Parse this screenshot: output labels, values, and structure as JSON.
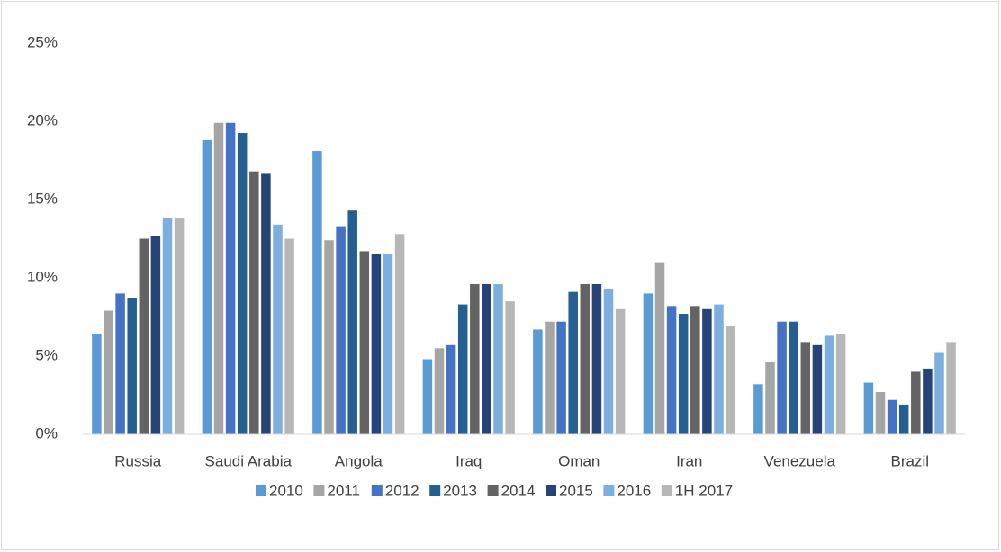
{
  "chart_data": {
    "type": "bar",
    "categories": [
      "Russia",
      "Saudi Arabia",
      "Angola",
      "Iraq",
      "Oman",
      "Iran",
      "Venezuela",
      "Brazil"
    ],
    "series": [
      {
        "name": "2010",
        "color": "#5b9bd5",
        "values": [
          6.4,
          18.8,
          18.1,
          4.8,
          6.7,
          9.0,
          3.2,
          3.3
        ]
      },
      {
        "name": "2011",
        "color": "#a5a5a5",
        "values": [
          7.9,
          19.9,
          12.4,
          5.5,
          7.2,
          11.0,
          4.6,
          2.7
        ]
      },
      {
        "name": "2012",
        "color": "#4472c4",
        "values": [
          9.0,
          19.9,
          13.3,
          5.7,
          7.2,
          8.2,
          7.2,
          2.2
        ]
      },
      {
        "name": "2013",
        "color": "#255e91",
        "values": [
          8.7,
          19.25,
          14.3,
          8.3,
          9.1,
          7.7,
          7.2,
          1.9
        ]
      },
      {
        "name": "2014",
        "color": "#636363",
        "values": [
          12.5,
          16.8,
          11.7,
          9.6,
          9.6,
          8.2,
          5.9,
          4.0
        ]
      },
      {
        "name": "2015",
        "color": "#264478",
        "values": [
          12.7,
          16.7,
          11.5,
          9.6,
          9.6,
          8.0,
          5.7,
          4.2
        ]
      },
      {
        "name": "2016",
        "color": "#7cafdd",
        "values": [
          13.85,
          13.4,
          11.5,
          9.6,
          9.3,
          8.3,
          6.3,
          5.2
        ]
      },
      {
        "name": "1H 2017",
        "color": "#b7b7b7",
        "values": [
          13.85,
          12.5,
          12.8,
          8.5,
          8.0,
          6.9,
          6.4,
          5.9
        ]
      }
    ],
    "ylim": [
      0,
      25
    ],
    "yticks": [
      {
        "value": 0,
        "label": "0%"
      },
      {
        "value": 5,
        "label": "5%"
      },
      {
        "value": 10,
        "label": "10%"
      },
      {
        "value": 15,
        "label": "15%"
      },
      {
        "value": 20,
        "label": "20%"
      },
      {
        "value": 25,
        "label": "25%"
      }
    ],
    "legend": "bottom"
  }
}
